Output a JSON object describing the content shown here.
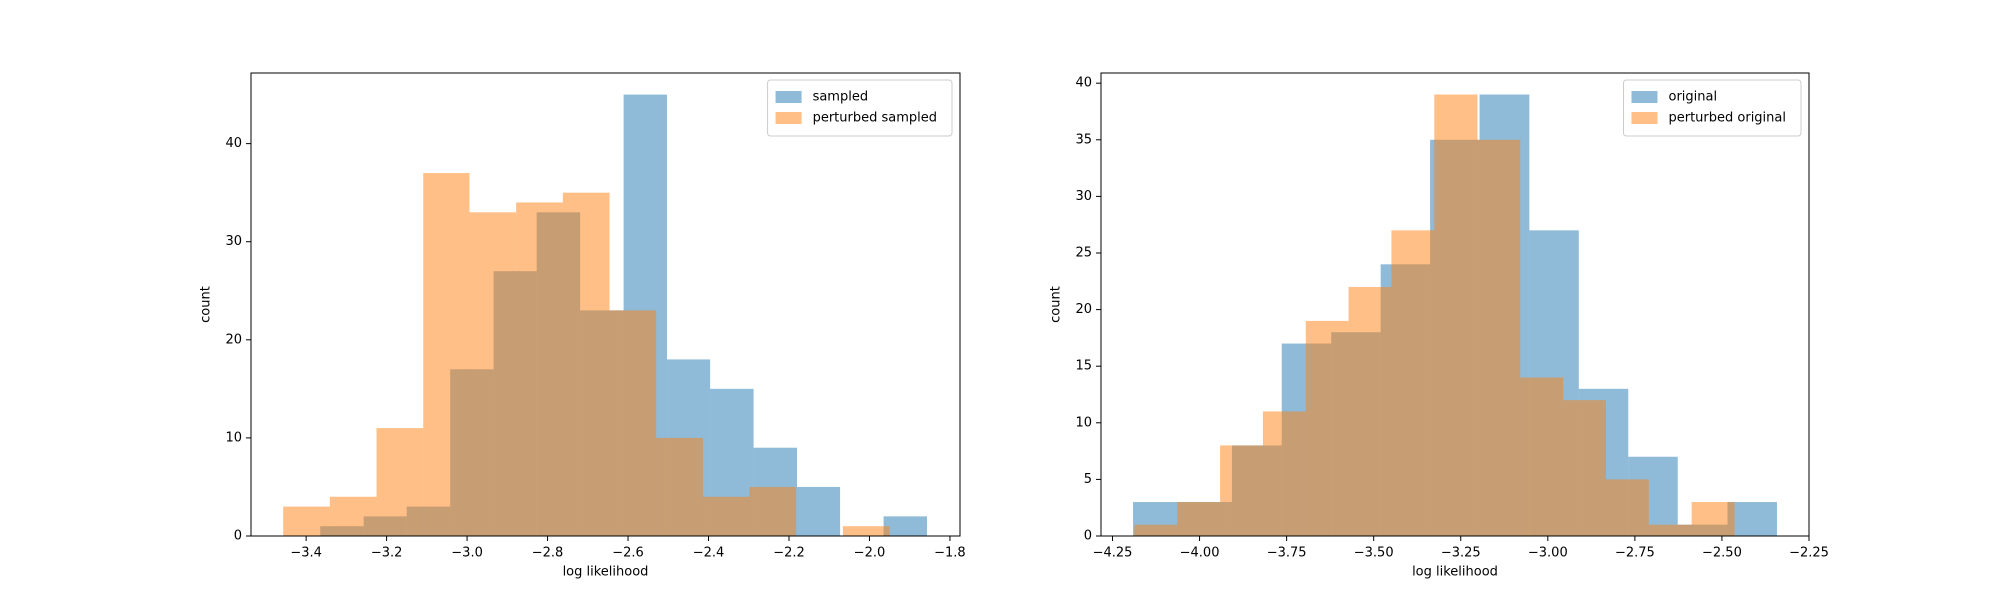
{
  "chart_data": [
    {
      "type": "histogram",
      "xlabel": "log likelihood",
      "ylabel": "count",
      "xlim": [
        -3.537,
        -1.775
      ],
      "ylim": [
        0,
        47.2
      ],
      "xticks": [
        {
          "value": -3.4,
          "label": "−3.4"
        },
        {
          "value": -3.2,
          "label": "−3.2"
        },
        {
          "value": -3.0,
          "label": "−3.0"
        },
        {
          "value": -2.8,
          "label": "−2.8"
        },
        {
          "value": -2.6,
          "label": "−2.6"
        },
        {
          "value": -2.4,
          "label": "−2.4"
        },
        {
          "value": -2.2,
          "label": "−2.2"
        },
        {
          "value": -2.0,
          "label": "−2.0"
        },
        {
          "value": -1.8,
          "label": "−1.8"
        }
      ],
      "yticks": [
        0,
        10,
        20,
        30,
        40
      ],
      "legend": "upper right",
      "opacity": 0.5,
      "series": [
        {
          "name": "sampled",
          "color": "#1f77b4",
          "bins": [
            -3.365,
            -3.257,
            -3.15,
            -3.042,
            -2.934,
            -2.827,
            -2.719,
            -2.611,
            -2.503,
            -2.396,
            -2.288,
            -2.18,
            -2.073,
            -1.965,
            -1.857
          ],
          "values": [
            1,
            2,
            3,
            17,
            27,
            33,
            23,
            45,
            18,
            15,
            9,
            5,
            0,
            2
          ]
        },
        {
          "name": "perturbed sampled",
          "color": "#ff7f0e",
          "bins": [
            -3.457,
            -3.341,
            -3.225,
            -3.109,
            -2.994,
            -2.878,
            -2.762,
            -2.646,
            -2.53,
            -2.414,
            -2.298,
            -2.182,
            -2.066,
            -1.95
          ],
          "values": [
            3,
            4,
            11,
            37,
            33,
            34,
            35,
            23,
            10,
            4,
            5,
            0,
            1
          ]
        }
      ]
    },
    {
      "type": "histogram",
      "xlabel": "log likelihood",
      "ylabel": "count",
      "xlim": [
        -4.283,
        -2.25
      ],
      "ylim": [
        0,
        40.9
      ],
      "xticks": [
        {
          "value": -4.25,
          "label": "−4.25"
        },
        {
          "value": -4.0,
          "label": "−4.00"
        },
        {
          "value": -3.75,
          "label": "−3.75"
        },
        {
          "value": -3.5,
          "label": "−3.50"
        },
        {
          "value": -3.25,
          "label": "−3.25"
        },
        {
          "value": -3.0,
          "label": "−3.00"
        },
        {
          "value": -2.75,
          "label": "−2.75"
        },
        {
          "value": -2.5,
          "label": "−2.50"
        },
        {
          "value": -2.25,
          "label": "−2.25"
        }
      ],
      "yticks": [
        0,
        5,
        10,
        15,
        20,
        25,
        30,
        35,
        40
      ],
      "legend": "upper right",
      "opacity": 0.5,
      "series": [
        {
          "name": "original",
          "color": "#1f77b4",
          "bins": [
            -4.191,
            -4.049,
            -3.907,
            -3.764,
            -3.622,
            -3.48,
            -3.338,
            -3.196,
            -3.053,
            -2.911,
            -2.769,
            -2.627,
            -2.484,
            -2.342
          ],
          "values": [
            3,
            3,
            8,
            17,
            18,
            24,
            35,
            39,
            27,
            13,
            7,
            1,
            3
          ]
        },
        {
          "name": "perturbed original",
          "color": "#ff7f0e",
          "bins": [
            -4.187,
            -4.064,
            -3.941,
            -3.818,
            -3.695,
            -3.572,
            -3.449,
            -3.326,
            -3.202,
            -3.079,
            -2.956,
            -2.833,
            -2.71,
            -2.587,
            -2.464
          ],
          "values": [
            1,
            3,
            8,
            11,
            19,
            22,
            27,
            39,
            35,
            14,
            12,
            5,
            1,
            3
          ]
        }
      ]
    }
  ]
}
